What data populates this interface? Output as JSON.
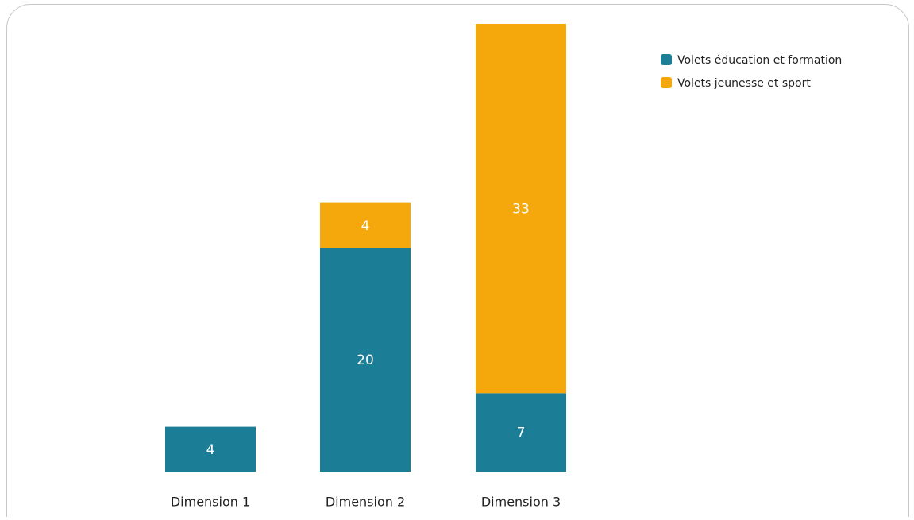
{
  "chart_data": {
    "type": "stacked_bar",
    "categories": [
      "Dimension 1",
      "Dimension 2",
      "Dimension 3"
    ],
    "series": [
      {
        "name": "Volets éducation et formation",
        "color": "#1b7d96",
        "values": [
          4,
          20,
          7
        ]
      },
      {
        "name": "Volets jeunesse et sport",
        "color": "#f5a80c",
        "values": [
          null,
          4,
          33
        ]
      }
    ],
    "ylim": [
      0,
      40
    ],
    "legend": "top-right",
    "grid": false
  }
}
